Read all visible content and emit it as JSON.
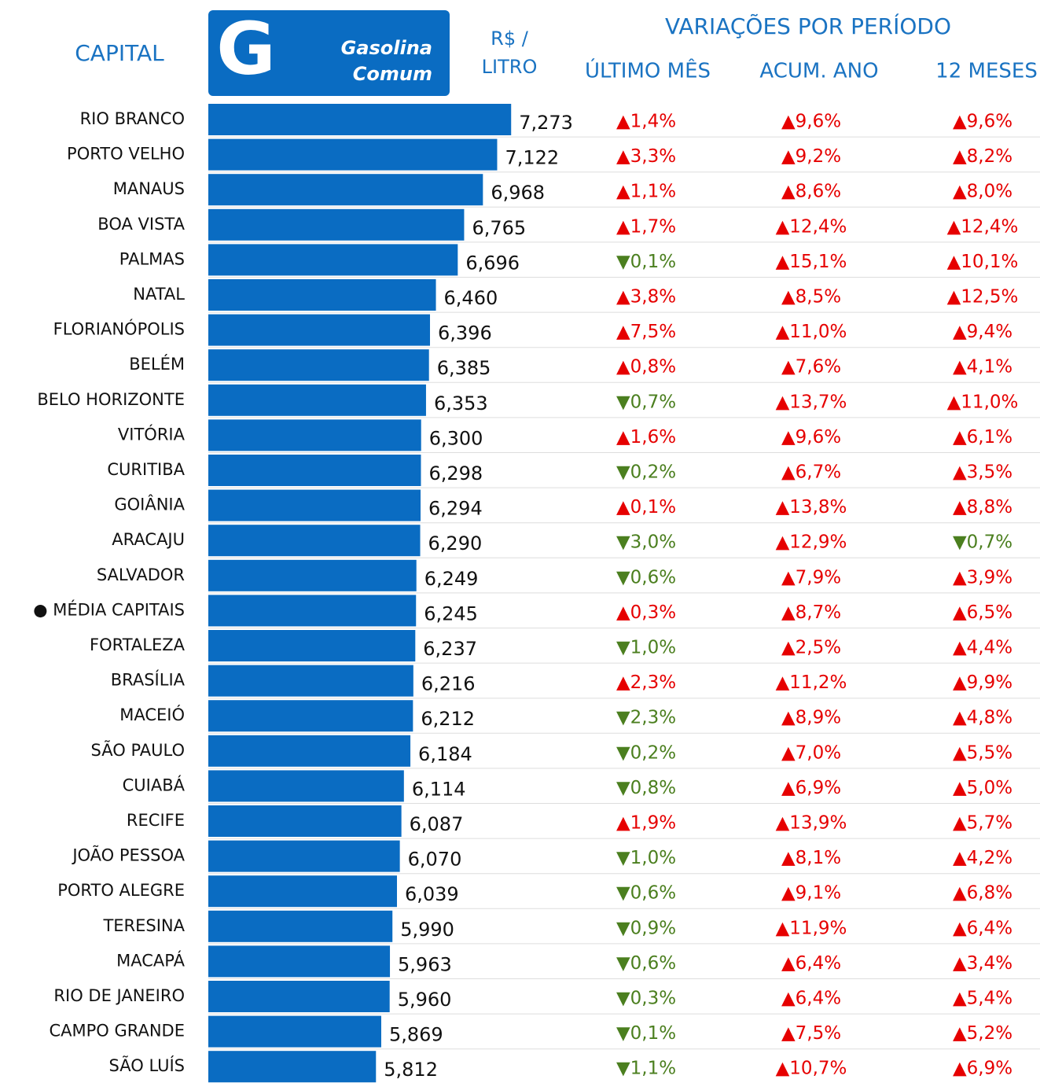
{
  "chart_data": {
    "type": "bar",
    "orientation": "horizontal",
    "headers": {
      "capital": "CAPITAL",
      "logo": "G",
      "fuel": [
        "Gasolina",
        "Comum"
      ],
      "price": [
        "R$ /",
        "LITRO"
      ],
      "variations": "VARIAÇÕES POR PERÍODO"
    },
    "categories": [
      "RIO BRANCO",
      "PORTO VELHO",
      "MANAUS",
      "BOA VISTA",
      "PALMAS",
      "NATAL",
      "FLORIANÓPOLIS",
      "BELÉM",
      "BELO HORIZONTE",
      "VITÓRIA",
      "CURITIBA",
      "GOIÂNIA",
      "ARACAJU",
      "SALVADOR",
      "● MÉDIA CAPITAIS",
      "FORTALEZA",
      "BRASÍLIA",
      "MACEIÓ",
      "SÃO PAULO",
      "CUIABÁ",
      "RECIFE",
      "JOÃO PESSOA",
      "PORTO ALEGRE",
      "TERESINA",
      "MACAPÁ",
      "RIO DE JANEIRO",
      "CAMPO GRANDE",
      "SÃO LUÍS"
    ],
    "values": [
      7.273,
      7.122,
      6.968,
      6.765,
      6.696,
      6.46,
      6.396,
      6.385,
      6.353,
      6.3,
      6.298,
      6.294,
      6.29,
      6.249,
      6.245,
      6.237,
      6.216,
      6.212,
      6.184,
      6.114,
      6.087,
      6.07,
      6.039,
      5.99,
      5.963,
      5.96,
      5.869,
      5.812
    ],
    "value_labels": [
      "7,273",
      "7,122",
      "6,968",
      "6,765",
      "6,696",
      "6,460",
      "6,396",
      "6,385",
      "6,353",
      "6,300",
      "6,298",
      "6,294",
      "6,290",
      "6,249",
      "6,245",
      "6,237",
      "6,216",
      "6,212",
      "6,184",
      "6,114",
      "6,087",
      "6,070",
      "6,039",
      "5,990",
      "5,963",
      "5,960",
      "5,869",
      "5,812"
    ],
    "color": "#0a6cc2",
    "xlim": [
      4,
      8
    ],
    "variations": [
      {
        "name": "ÚLTIMO MÊS",
        "values": [
          1.4,
          3.3,
          1.1,
          1.7,
          -0.1,
          3.8,
          7.5,
          0.8,
          -0.7,
          1.6,
          -0.2,
          0.1,
          -3.0,
          -0.6,
          0.3,
          -1.0,
          2.3,
          -2.3,
          -0.2,
          -0.8,
          1.9,
          -1.0,
          -0.6,
          -0.9,
          -0.6,
          -0.3,
          -0.1,
          -1.1
        ],
        "value_labels": [
          "▲1,4%",
          "▲3,3%",
          "▲1,1%",
          "▲1,7%",
          "▼0,1%",
          "▲3,8%",
          "▲7,5%",
          "▲0,8%",
          "▼0,7%",
          "▲1,6%",
          "▼0,2%",
          "▲0,1%",
          "▼3,0%",
          "▼0,6%",
          "▲0,3%",
          "▼1,0%",
          "▲2,3%",
          "▼2,3%",
          "▼0,2%",
          "▼0,8%",
          "▲1,9%",
          "▼1,0%",
          "▼0,6%",
          "▼0,9%",
          "▼0,6%",
          "▼0,3%",
          "▼0,1%",
          "▼1,1%"
        ]
      },
      {
        "name": "ACUM. ANO",
        "values": [
          9.6,
          9.2,
          8.6,
          12.4,
          15.1,
          8.5,
          11.0,
          7.6,
          13.7,
          9.6,
          6.7,
          13.8,
          12.9,
          7.9,
          8.7,
          2.5,
          11.2,
          8.9,
          7.0,
          6.9,
          13.9,
          8.1,
          9.1,
          11.9,
          6.4,
          6.4,
          7.5,
          10.7
        ],
        "value_labels": [
          "▲9,6%",
          "▲9,2%",
          "▲8,6%",
          "▲12,4%",
          "▲15,1%",
          "▲8,5%",
          "▲11,0%",
          "▲7,6%",
          "▲13,7%",
          "▲9,6%",
          "▲6,7%",
          "▲13,8%",
          "▲12,9%",
          "▲7,9%",
          "▲8,7%",
          "▲2,5%",
          "▲11,2%",
          "▲8,9%",
          "▲7,0%",
          "▲6,9%",
          "▲13,9%",
          "▲8,1%",
          "▲9,1%",
          "▲11,9%",
          "▲6,4%",
          "▲6,4%",
          "▲7,5%",
          "▲10,7%"
        ]
      },
      {
        "name": "12 MESES",
        "values": [
          9.6,
          8.2,
          8.0,
          12.4,
          10.1,
          12.5,
          9.4,
          4.1,
          11.0,
          6.1,
          3.5,
          8.8,
          -0.7,
          3.9,
          6.5,
          4.4,
          9.9,
          4.8,
          5.5,
          5.0,
          5.7,
          4.2,
          6.8,
          6.4,
          3.4,
          5.4,
          5.2,
          6.9
        ],
        "value_labels": [
          "▲9,6%",
          "▲8,2%",
          "▲8,0%",
          "▲12,4%",
          "▲10,1%",
          "▲12,5%",
          "▲9,4%",
          "▲4,1%",
          "▲11,0%",
          "▲6,1%",
          "▲3,5%",
          "▲8,8%",
          "▼0,7%",
          "▲3,9%",
          "▲6,5%",
          "▲4,4%",
          "▲9,9%",
          "▲4,8%",
          "▲5,5%",
          "▲5,0%",
          "▲5,7%",
          "▲4,2%",
          "▲6,8%",
          "▲6,4%",
          "▲3,4%",
          "▲5,4%",
          "▲5,2%",
          "▲6,9%"
        ]
      }
    ],
    "up_color": "#e60000",
    "down_color": "#4b7f1f",
    "header_color": "#1a73c2"
  }
}
